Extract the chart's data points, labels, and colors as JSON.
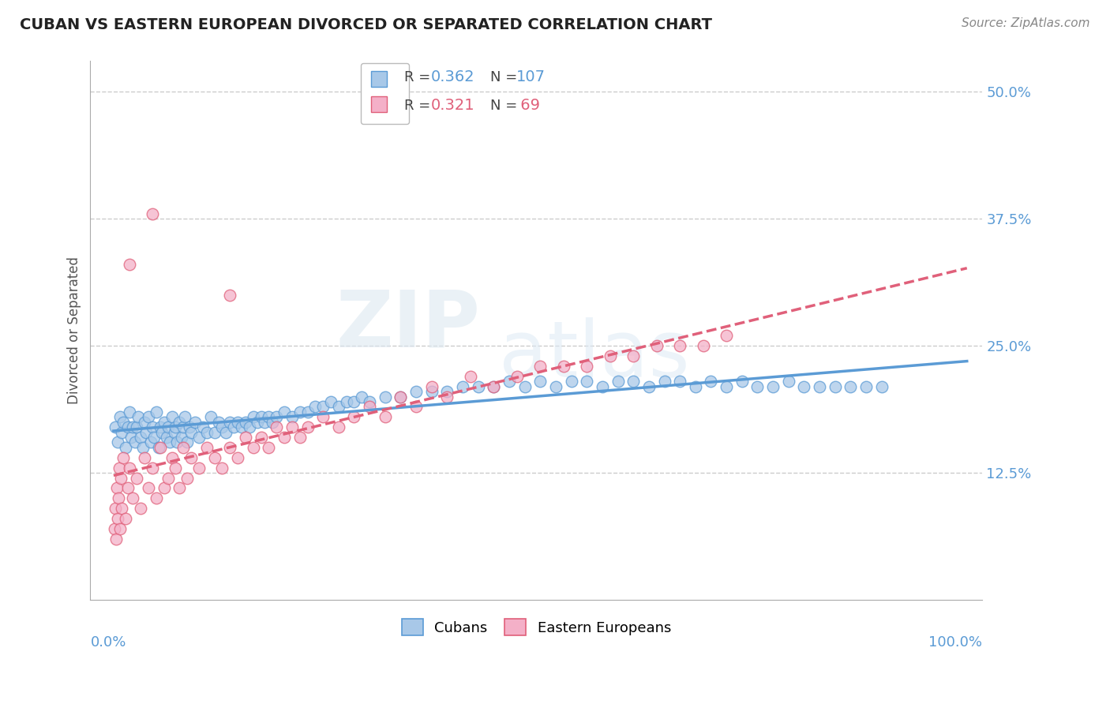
{
  "title": "CUBAN VS EASTERN EUROPEAN DIVORCED OR SEPARATED CORRELATION CHART",
  "source_text": "Source: ZipAtlas.com",
  "ylabel": "Divorced or Separated",
  "cuban_color": "#a8c8e8",
  "cuban_edge_color": "#5b9bd5",
  "eastern_color": "#f4b0c8",
  "eastern_edge_color": "#e0607a",
  "trend_cuban_color": "#5b9bd5",
  "trend_eastern_color": "#e0607a",
  "background_color": "#ffffff",
  "grid_color": "#cccccc",
  "title_color": "#222222",
  "right_axis_color": "#5b9bd5",
  "bottom_axis_color": "#5b9bd5",
  "legend_r_cuban": "R = 0.362",
  "legend_n_cuban": "N = 107",
  "legend_r_eastern": "R = 0.321",
  "legend_n_eastern": "N =  69",
  "ytick_vals": [
    0,
    12.5,
    25.0,
    37.5,
    50.0
  ],
  "ytick_labels": [
    "",
    "12.5%",
    "25.0%",
    "37.5%",
    "50.0%"
  ],
  "xlim": [
    -3,
    112
  ],
  "ylim": [
    0,
    53
  ],
  "watermark_zip": "ZIP",
  "watermark_atlas": "atlas"
}
